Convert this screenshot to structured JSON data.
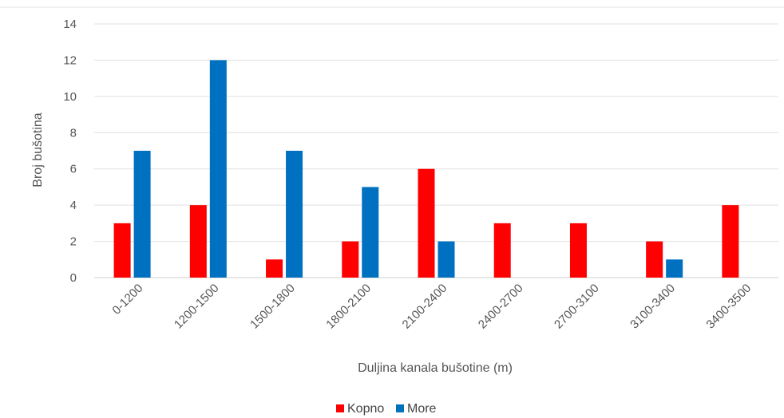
{
  "chart_data": {
    "type": "bar",
    "categories": [
      "0-1200",
      "1200-1500",
      "1500-1800",
      "1800-2100",
      "2100-2400",
      "2400-2700",
      "2700-3100",
      "3100-3400",
      "3400-3500"
    ],
    "series": [
      {
        "name": "Kopno",
        "color": "#ff0000",
        "values": [
          3,
          4,
          1,
          2,
          6,
          3,
          3,
          2,
          4
        ]
      },
      {
        "name": "More",
        "color": "#0070c0",
        "values": [
          7,
          12,
          7,
          5,
          2,
          0,
          0,
          1,
          0
        ]
      }
    ],
    "title": "",
    "xlabel": "Duljina kanala bušotine (m)",
    "ylabel": "Broj bušotina",
    "ylim": [
      0,
      14
    ],
    "yticks": [
      0,
      2,
      4,
      6,
      8,
      10,
      12,
      14
    ],
    "grid": true,
    "legend_position": "bottom"
  }
}
